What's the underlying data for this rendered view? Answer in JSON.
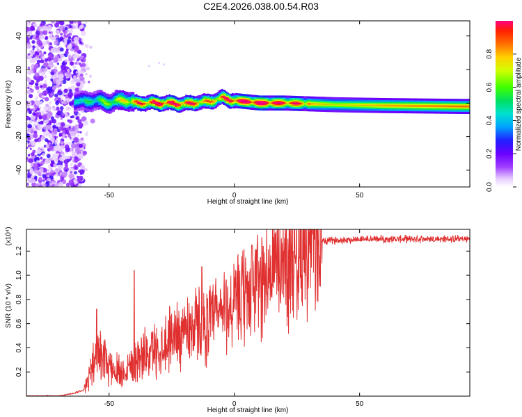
{
  "title": "C2E4.2026.038.00.54.R03",
  "chart_data": [
    {
      "type": "heatmap",
      "xlabel": "Height of straight line (km)",
      "ylabel": "Frequency (Hz)",
      "xlim": [
        -83,
        94
      ],
      "ylim": [
        -50,
        49
      ],
      "xticks": [
        -50,
        0,
        50
      ],
      "yticks": [
        -40,
        -20,
        0,
        20,
        40
      ],
      "colorbar": {
        "label": "Normalized spectral amplitude",
        "range": [
          0.0,
          1.0
        ],
        "ticks": [
          "0.0",
          "0.2",
          "0.4",
          "0.6",
          "0.8"
        ],
        "tick_values": [
          0.0,
          0.2,
          0.4,
          0.6,
          0.8
        ]
      },
      "ridge": {
        "description_points": [
          {
            "h": -60,
            "f": 1.0,
            "amp": 0.45
          },
          {
            "h": -55,
            "f": 1.5,
            "amp": 0.5
          },
          {
            "h": -50,
            "f": 0.0,
            "amp": 0.6
          },
          {
            "h": -45,
            "f": 2.0,
            "amp": 0.65
          },
          {
            "h": -40,
            "f": 0.0,
            "amp": 0.8
          },
          {
            "h": -30,
            "f": 0.0,
            "amp": 0.95
          },
          {
            "h": -20,
            "f": -0.5,
            "amp": 0.9
          },
          {
            "h": -10,
            "f": 1.0,
            "amp": 0.75
          },
          {
            "h": -5,
            "f": 3.0,
            "amp": 0.85
          },
          {
            "h": 0,
            "f": 1.5,
            "amp": 0.95
          },
          {
            "h": 10,
            "f": 0.0,
            "amp": 1.0
          },
          {
            "h": 20,
            "f": 0.0,
            "amp": 0.9
          },
          {
            "h": 40,
            "f": -1.0,
            "amp": 0.7
          },
          {
            "h": 60,
            "f": -1.5,
            "amp": 0.8
          },
          {
            "h": 90,
            "f": -2.0,
            "amp": 0.85
          }
        ]
      }
    },
    {
      "type": "line",
      "xlabel": "Height of straight line (km)",
      "ylabel": "SNR (10 * v/v)",
      "scale_label": "(x10⁴)",
      "xlim": [
        -83,
        94
      ],
      "ylim": [
        0,
        1.38
      ],
      "xticks": [
        -50,
        0,
        50
      ],
      "yticks": [
        0.2,
        0.4,
        0.6,
        0.8,
        1.0,
        1.2
      ],
      "yticklabels": [
        "0.2",
        "0.4",
        "0.6",
        "0.8",
        "1.0",
        "1.2"
      ],
      "series": [
        {
          "name": "SNR",
          "color": "#e03030",
          "envelope": {
            "x": [
              -83,
              -70,
              -65,
              -60,
              -58,
              -55,
              -50,
              -45,
              -40,
              -35,
              -30,
              -25,
              -20,
              -15,
              -10,
              -5,
              0,
              5,
              10,
              15,
              20,
              25,
              30,
              35,
              40,
              50,
              60,
              70,
              80,
              94
            ],
            "y": [
              0.0,
              0.0,
              0.02,
              0.05,
              0.2,
              0.35,
              0.25,
              0.2,
              0.3,
              0.35,
              0.4,
              0.5,
              0.55,
              0.6,
              0.6,
              0.7,
              0.75,
              0.85,
              0.95,
              1.05,
              1.12,
              1.2,
              1.25,
              1.28,
              1.29,
              1.3,
              1.3,
              1.3,
              1.3,
              1.3
            ]
          },
          "spikes": [
            {
              "x": -55,
              "y": 0.72
            },
            {
              "x": -40,
              "y": 1.04
            },
            {
              "x": -13,
              "y": 1.07
            },
            {
              "x": 7,
              "y": 1.25
            }
          ]
        }
      ]
    }
  ]
}
